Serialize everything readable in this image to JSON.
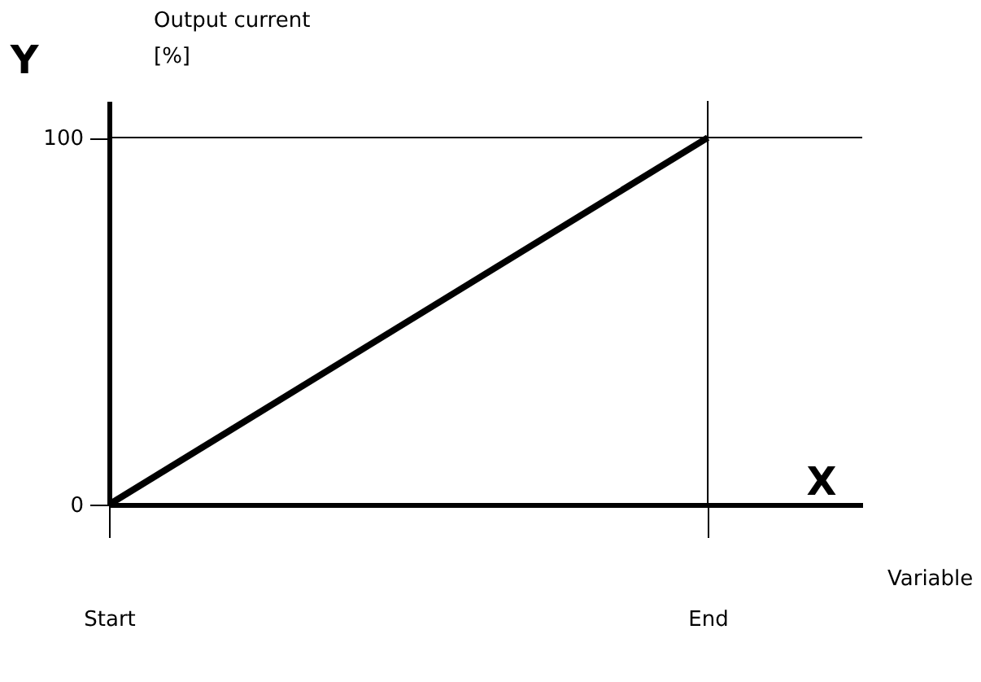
{
  "chart_data": {
    "type": "line",
    "xlabel": "Variable",
    "ylabel": "Output current\n[%]",
    "annotations": [
      "Y",
      "X"
    ],
    "categories": [
      "Start",
      "End"
    ],
    "series": [
      {
        "color": "#000000",
        "values": [
          0,
          100
        ]
      }
    ],
    "ylim": [
      0,
      110
    ],
    "yticks": [
      0,
      100
    ],
    "ref_lines": [
      {
        "axis": "x",
        "value": "End"
      },
      {
        "axis": "y",
        "value": 100
      }
    ],
    "grid": false,
    "legend": false,
    "marker": "none",
    "line_style": "solid"
  }
}
